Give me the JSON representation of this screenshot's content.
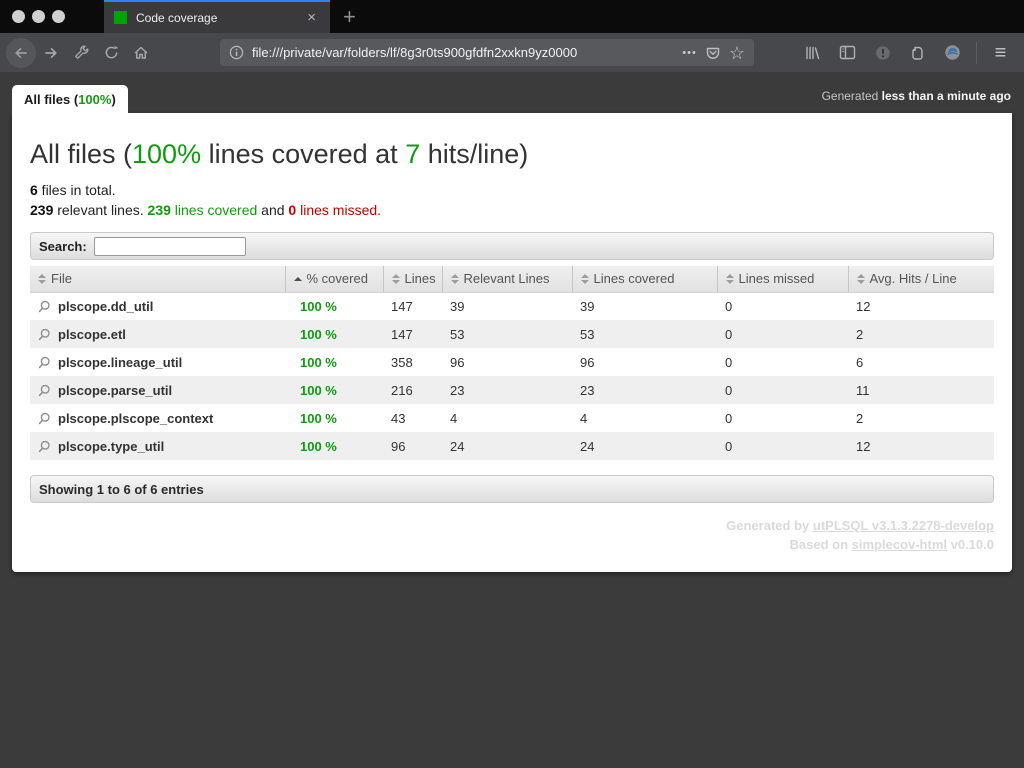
{
  "browser": {
    "tab": {
      "title": "Code coverage",
      "close_glyph": "×"
    },
    "new_tab_glyph": "+",
    "url": "file:///private/var/folders/lf/8g3r0ts900gfdfn2xxkn9yz0000",
    "page_actions_glyph": "•••",
    "star_glyph": "☆",
    "menu_glyph": "≡"
  },
  "header": {
    "files_tab": {
      "prefix": "All files (",
      "percent": "100%",
      "suffix": ")"
    },
    "generated": {
      "prefix": "Generated ",
      "time": "less than a minute ago"
    }
  },
  "main": {
    "title": {
      "prefix": "All files (",
      "percent": "100%",
      "mid": " lines covered at ",
      "hits": "7",
      "suffix": " hits/line)"
    },
    "stats_line1": {
      "count": "6",
      "text": " files in total."
    },
    "stats_line2": {
      "relevant_count": "239",
      "relevant_text": " relevant lines. ",
      "covered_count": "239",
      "covered_text": " lines covered",
      "and": " and ",
      "missed_count": "0",
      "missed_text": " lines missed."
    },
    "search": {
      "label": "Search:",
      "value": ""
    },
    "table": {
      "columns": [
        {
          "label": "File",
          "sort": "both"
        },
        {
          "label": "% covered",
          "sort": "asc"
        },
        {
          "label": "Lines",
          "sort": "both"
        },
        {
          "label": "Relevant Lines",
          "sort": "both"
        },
        {
          "label": "Lines covered",
          "sort": "both"
        },
        {
          "label": "Lines missed",
          "sort": "both"
        },
        {
          "label": "Avg. Hits / Line",
          "sort": "both"
        }
      ],
      "rows": [
        {
          "file": "plscope.dd_util",
          "covered": "100 %",
          "lines": "147",
          "relevant": "39",
          "lines_covered": "39",
          "lines_missed": "0",
          "avg_hits": "12"
        },
        {
          "file": "plscope.etl",
          "covered": "100 %",
          "lines": "147",
          "relevant": "53",
          "lines_covered": "53",
          "lines_missed": "0",
          "avg_hits": "2"
        },
        {
          "file": "plscope.lineage_util",
          "covered": "100 %",
          "lines": "358",
          "relevant": "96",
          "lines_covered": "96",
          "lines_missed": "0",
          "avg_hits": "6"
        },
        {
          "file": "plscope.parse_util",
          "covered": "100 %",
          "lines": "216",
          "relevant": "23",
          "lines_covered": "23",
          "lines_missed": "0",
          "avg_hits": "11"
        },
        {
          "file": "plscope.plscope_context",
          "covered": "100 %",
          "lines": "43",
          "relevant": "4",
          "lines_covered": "4",
          "lines_missed": "0",
          "avg_hits": "2"
        },
        {
          "file": "plscope.type_util",
          "covered": "100 %",
          "lines": "96",
          "relevant": "24",
          "lines_covered": "24",
          "lines_missed": "0",
          "avg_hits": "12"
        }
      ]
    },
    "showing": "Showing 1 to 6 of 6 entries",
    "footer": {
      "line1_prefix": "Generated by ",
      "line1_link": "utPLSQL v3.1.3.2278-develop",
      "line2_prefix": "Based on ",
      "line2_link": "simplecov-html",
      "line2_suffix": " v0.10.0"
    }
  },
  "colors": {
    "green": "#0f9d0f",
    "red": "#c00000",
    "favicon_green": "#00a400",
    "tab_accent_blue": "#2a84ff"
  }
}
